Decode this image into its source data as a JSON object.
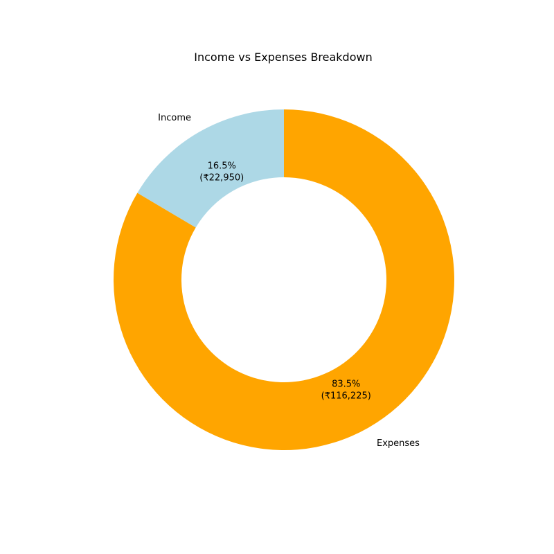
{
  "chart_data": {
    "type": "pie",
    "style": "donut",
    "title": "Income vs Expenses Breakdown",
    "slices": [
      {
        "label": "Income",
        "value": 22950,
        "percent_text": "16.5%",
        "value_text": "(₹22,950)",
        "color": "#add8e6"
      },
      {
        "label": "Expenses",
        "value": 116225,
        "percent_text": "83.5%",
        "value_text": "(₹116,225)",
        "color": "#ffa500"
      }
    ],
    "start_angle_deg": 90,
    "direction": "counterclockwise",
    "background": "#ffffff"
  }
}
